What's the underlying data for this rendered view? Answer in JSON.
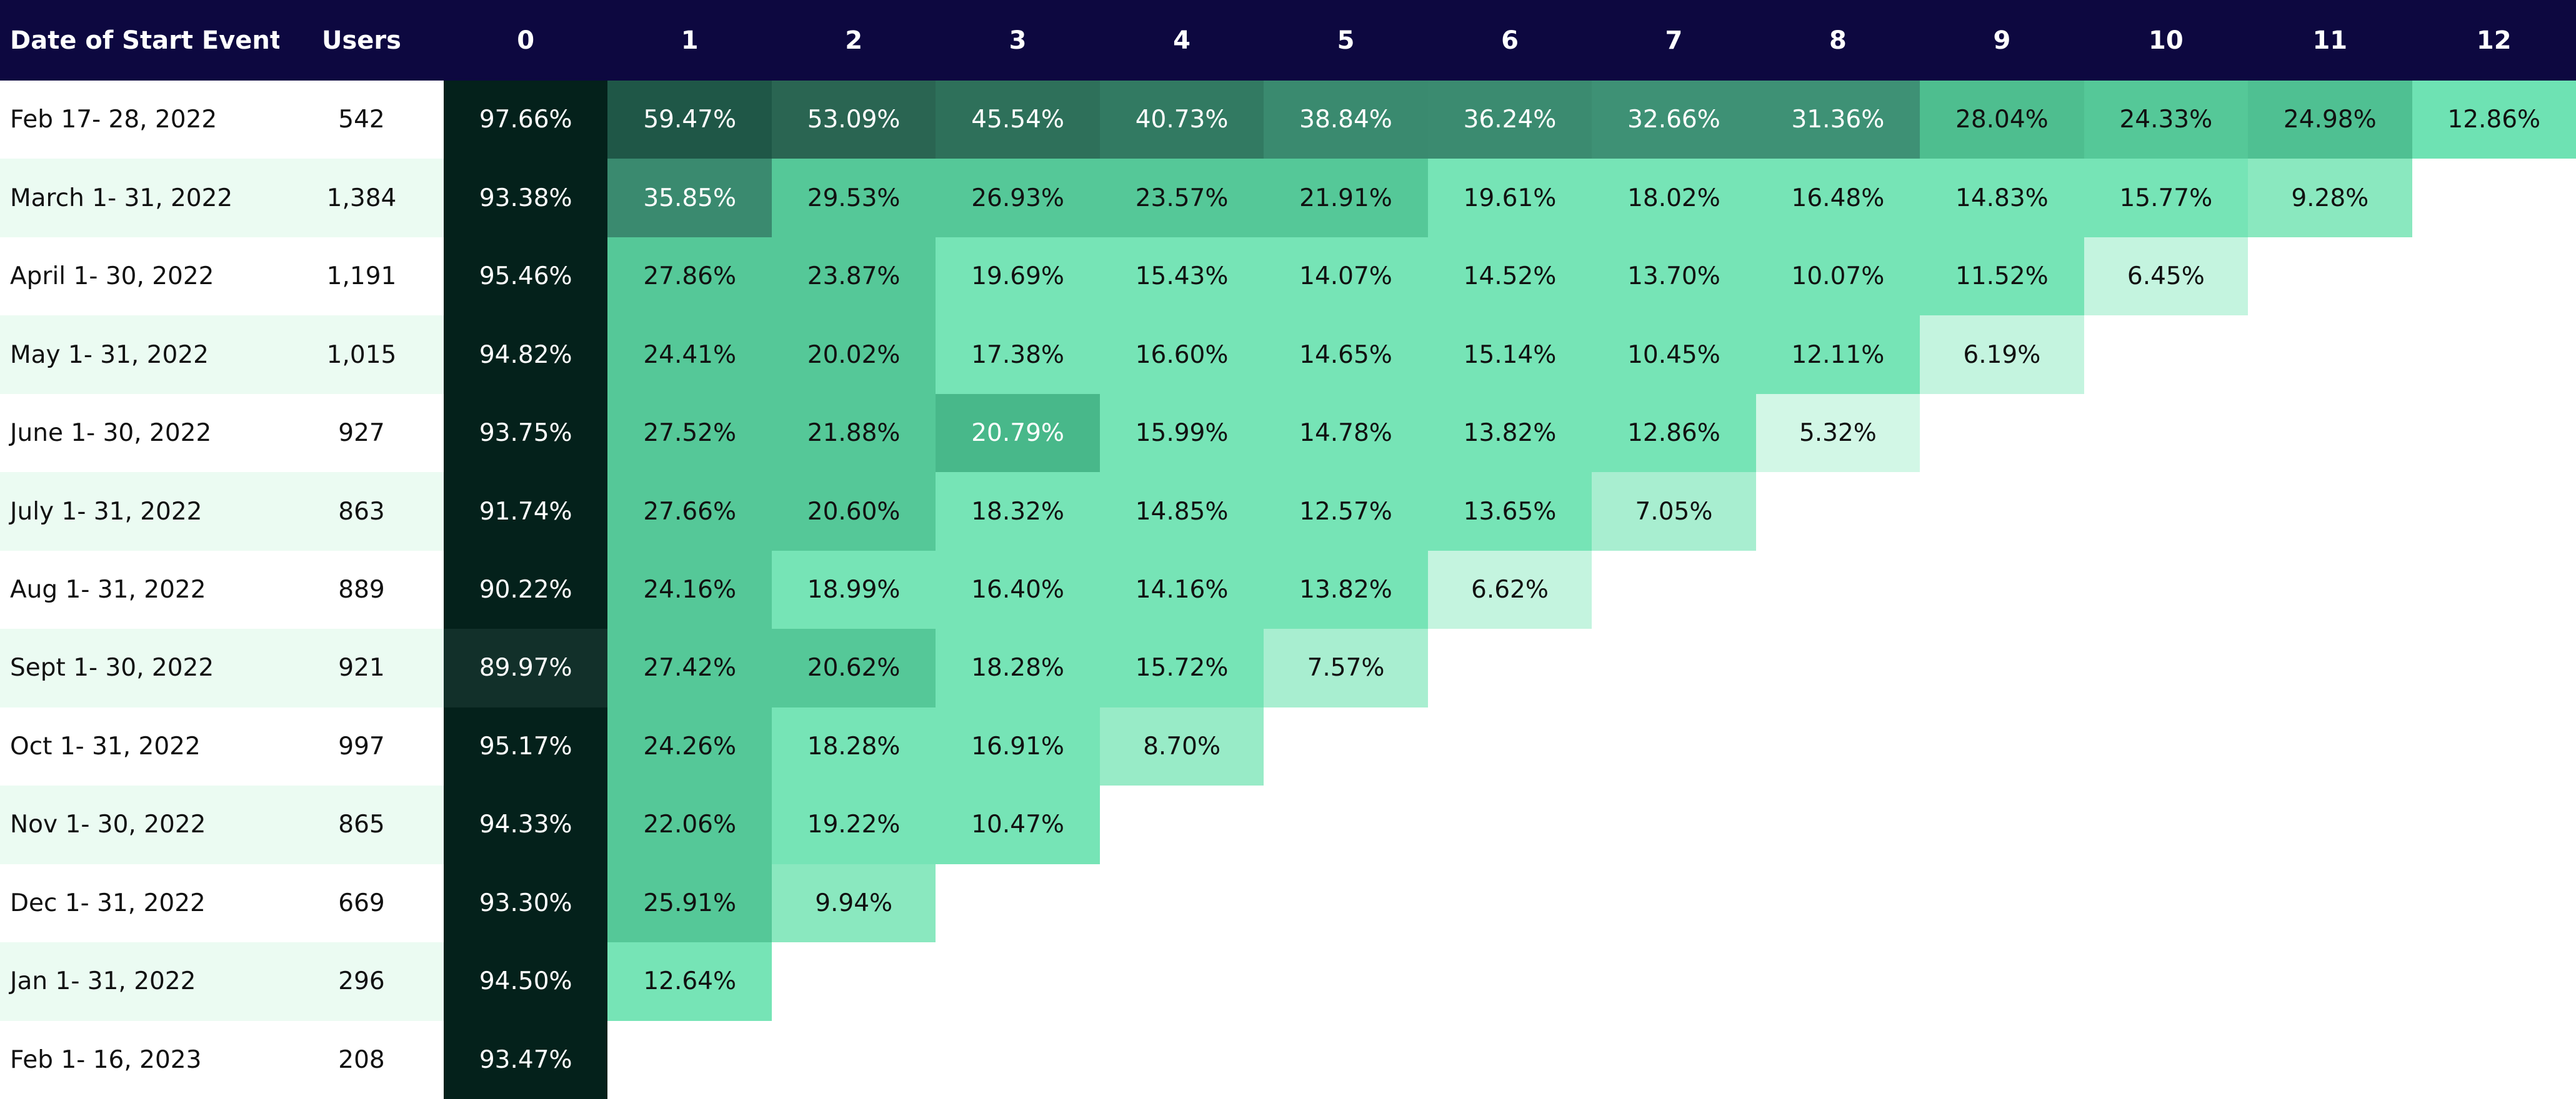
{
  "table": {
    "header": [
      "Date of Start Event",
      "Users",
      "0",
      "1",
      "2",
      "3",
      "4",
      "5",
      "6",
      "7",
      "8",
      "9",
      "10",
      "11",
      "12"
    ],
    "rows": [
      {
        "date": "Feb 17- 28, 2022",
        "users": "542",
        "values": [
          "97.66%",
          "59.47%",
          "53.09%",
          "45.54%",
          "40.73%",
          "38.84%",
          "36.24%",
          "32.66%",
          "31.36%",
          "28.04%",
          "24.33%",
          "24.98%",
          "12.86%"
        ],
        "colors": [
          "#04211b",
          "#1f5747",
          "#2a6552",
          "#2e705a",
          "#327a62",
          "#3a8a6f",
          "#3b8b70",
          "#3e9175",
          "#3e9175",
          "#4ebe8f",
          "#55c898",
          "#4fc092",
          "#6ee2b3"
        ]
      },
      {
        "date": "March 1- 31, 2022",
        "users": "1,384",
        "values": [
          "93.38%",
          "35.85%",
          "29.53%",
          "26.93%",
          "23.57%",
          "21.91%",
          "19.61%",
          "18.02%",
          "16.48%",
          "14.83%",
          "15.77%",
          "9.28%"
        ],
        "colors": [
          "#04211b",
          "#3a8a6f",
          "#55c898",
          "#55c898",
          "#55c898",
          "#55c898",
          "#76e4b6",
          "#76e4b6",
          "#76e4b6",
          "#76e4b6",
          "#76e4b6",
          "#8ae8bf"
        ]
      },
      {
        "date": "April 1- 30, 2022",
        "users": "1,191",
        "values": [
          "95.46%",
          "27.86%",
          "23.87%",
          "19.69%",
          "15.43%",
          "14.07%",
          "14.52%",
          "13.70%",
          "10.07%",
          "11.52%",
          "6.45%"
        ],
        "colors": [
          "#04211b",
          "#55c898",
          "#55c898",
          "#76e4b6",
          "#76e4b6",
          "#76e4b6",
          "#76e4b6",
          "#76e4b6",
          "#76e4b6",
          "#76e4b6",
          "#c4f4df"
        ]
      },
      {
        "date": "May 1- 31, 2022",
        "users": "1,015",
        "values": [
          "94.82%",
          "24.41%",
          "20.02%",
          "17.38%",
          "16.60%",
          "14.65%",
          "15.14%",
          "10.45%",
          "12.11%",
          "6.19%"
        ],
        "colors": [
          "#04211b",
          "#55c898",
          "#55c898",
          "#76e4b6",
          "#76e4b6",
          "#76e4b6",
          "#76e4b6",
          "#76e4b6",
          "#76e4b6",
          "#c4f4df"
        ]
      },
      {
        "date": "June 1- 30, 2022",
        "users": "927",
        "values": [
          "93.75%",
          "27.52%",
          "21.88%",
          "20.79%",
          "15.99%",
          "14.78%",
          "13.82%",
          "12.86%",
          "5.32%"
        ],
        "colors": [
          "#04211b",
          "#55c898",
          "#55c898",
          "#48b88a",
          "#76e4b6",
          "#76e4b6",
          "#76e4b6",
          "#76e4b6",
          "#d2f7e6"
        ]
      },
      {
        "date": "July 1- 31, 2022",
        "users": "863",
        "values": [
          "91.74%",
          "27.66%",
          "20.60%",
          "18.32%",
          "14.85%",
          "12.57%",
          "13.65%",
          "7.05%"
        ],
        "colors": [
          "#04211b",
          "#55c898",
          "#55c898",
          "#76e4b6",
          "#76e4b6",
          "#76e4b6",
          "#76e4b6",
          "#a8eed0"
        ]
      },
      {
        "date": "Aug 1- 31, 2022",
        "users": "889",
        "values": [
          "90.22%",
          "24.16%",
          "18.99%",
          "16.40%",
          "14.16%",
          "13.82%",
          "6.62%"
        ],
        "colors": [
          "#04211b",
          "#55c898",
          "#76e4b6",
          "#76e4b6",
          "#76e4b6",
          "#76e4b6",
          "#c4f4df"
        ]
      },
      {
        "date": "Sept 1- 30, 2022",
        "users": "921",
        "values": [
          "89.97%",
          "27.42%",
          "20.62%",
          "18.28%",
          "15.72%",
          "7.57%"
        ],
        "colors": [
          "#12302a",
          "#55c898",
          "#55c898",
          "#76e4b6",
          "#76e4b6",
          "#a8eed0"
        ]
      },
      {
        "date": "Oct 1- 31, 2022",
        "users": "997",
        "values": [
          "95.17%",
          "24.26%",
          "18.28%",
          "16.91%",
          "8.70%"
        ],
        "colors": [
          "#04211b",
          "#55c898",
          "#76e4b6",
          "#76e4b6",
          "#98ebc7"
        ]
      },
      {
        "date": "Nov 1- 30, 2022",
        "users": "865",
        "values": [
          "94.33%",
          "22.06%",
          "19.22%",
          "10.47%"
        ],
        "colors": [
          "#04211b",
          "#55c898",
          "#76e4b6",
          "#76e4b6"
        ]
      },
      {
        "date": "Dec 1- 31, 2022",
        "users": "669",
        "values": [
          "93.30%",
          "25.91%",
          "9.94%"
        ],
        "colors": [
          "#04211b",
          "#55c898",
          "#8ae8bf"
        ]
      },
      {
        "date": "Jan 1- 31, 2022",
        "users": "296",
        "values": [
          "94.50%",
          "12.64%"
        ],
        "colors": [
          "#04211b",
          "#76e4b6"
        ]
      },
      {
        "date": "Feb 1- 16, 2023",
        "users": "208",
        "values": [
          "93.47%"
        ],
        "colors": [
          "#04211b"
        ]
      }
    ]
  }
}
